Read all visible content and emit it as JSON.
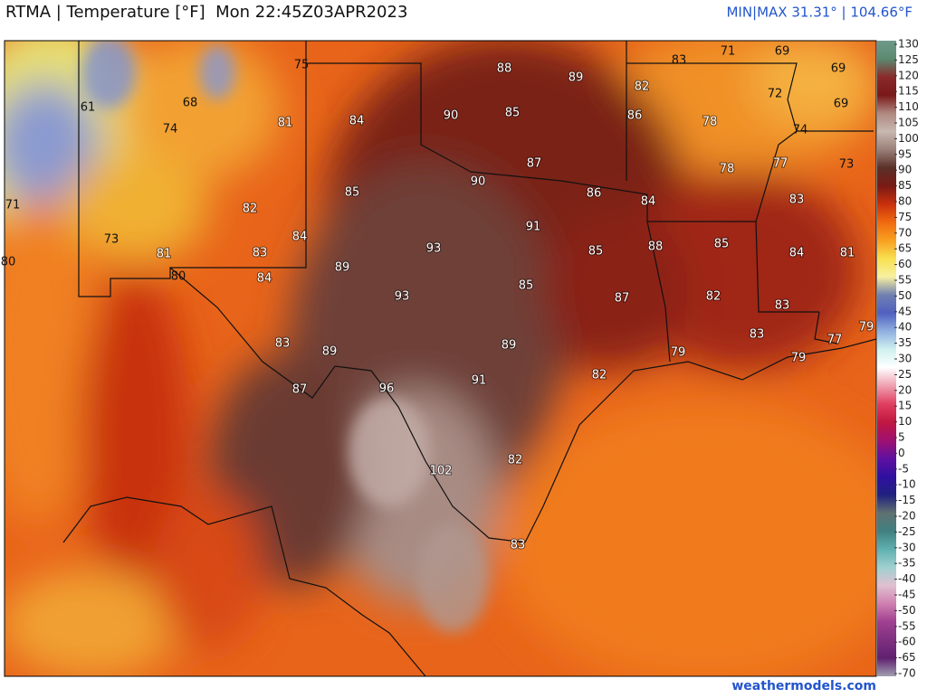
{
  "header": {
    "title": "RTMA | Temperature [°F]  Mon 22:45Z03APR2023",
    "minmax": "MIN|MAX 31.31° | 104.66°F"
  },
  "labels": [
    75,
    88,
    89,
    83,
    71,
    69,
    69,
    82,
    72,
    69,
    61,
    68,
    90,
    85,
    86,
    78,
    74,
    81,
    84,
    74,
    87,
    78,
    77,
    73,
    90,
    86,
    84,
    85,
    83,
    71,
    82,
    91,
    73,
    84,
    93,
    88,
    85,
    84,
    81,
    81,
    83,
    85,
    80,
    80,
    84,
    89,
    93,
    85,
    87,
    82,
    83,
    83,
    79,
    77,
    83,
    89,
    89,
    79,
    79,
    82,
    91,
    87,
    96,
    82,
    102,
    83
  ],
  "colorbar": {
    "ticks": [
      130,
      125,
      120,
      115,
      110,
      105,
      100,
      95,
      90,
      85,
      80,
      75,
      70,
      65,
      60,
      55,
      50,
      45,
      40,
      35,
      30,
      25,
      20,
      15,
      10,
      5,
      0,
      -5,
      -10,
      -15,
      -20,
      -25,
      -30,
      -35,
      -40,
      -45,
      -50,
      -55,
      -60,
      -65,
      -70
    ]
  },
  "footer": "weathermodels.com"
}
